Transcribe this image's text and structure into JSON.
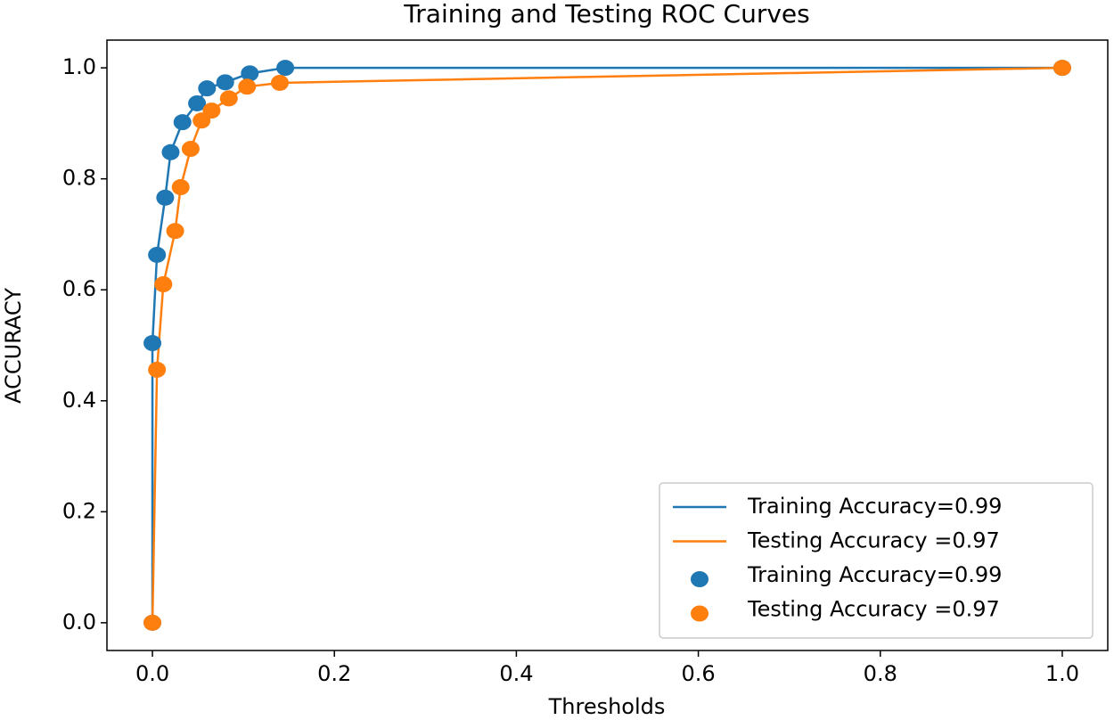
{
  "chart_data": {
    "type": "line",
    "title": "Training and Testing ROC Curves",
    "xlabel": "Thresholds",
    "ylabel": "ACCURACY",
    "xlim": [
      -0.05,
      1.05
    ],
    "ylim": [
      -0.05,
      1.05
    ],
    "xticks": [
      {
        "value": 0,
        "label": "0.0"
      },
      {
        "value": 0.2,
        "label": "0.2"
      },
      {
        "value": 0.4,
        "label": "0.4"
      },
      {
        "value": 0.6,
        "label": "0.6"
      },
      {
        "value": 0.8,
        "label": "0.8"
      },
      {
        "value": 1,
        "label": "1.0"
      }
    ],
    "yticks": [
      {
        "value": 0,
        "label": "0.0"
      },
      {
        "value": 0.2,
        "label": "0.2"
      },
      {
        "value": 0.4,
        "label": "0.4"
      },
      {
        "value": 0.6,
        "label": "0.6"
      },
      {
        "value": 0.8,
        "label": "0.8"
      },
      {
        "value": 1,
        "label": "1.0"
      }
    ],
    "legend": "lower right",
    "series": [
      {
        "name": "Training Accuracy=0.99",
        "kind": "line",
        "color": "#1f77b4",
        "x": [
          0,
          0,
          0.005,
          0.014,
          0.02,
          0.033,
          0.049,
          0.06,
          0.08,
          0.107,
          0.146,
          1
        ],
        "values": [
          0,
          0.504,
          0.663,
          0.766,
          0.848,
          0.902,
          0.936,
          0.963,
          0.974,
          0.99,
          1,
          1
        ]
      },
      {
        "name": "Testing Accuracy =0.97",
        "kind": "line",
        "color": "#ff7f0e",
        "x": [
          0,
          0.005,
          0.012,
          0.025,
          0.031,
          0.042,
          0.054,
          0.065,
          0.084,
          0.104,
          0.14,
          1
        ],
        "values": [
          0,
          0.456,
          0.61,
          0.706,
          0.785,
          0.854,
          0.905,
          0.923,
          0.945,
          0.966,
          0.973,
          1
        ]
      },
      {
        "name": "Training Accuracy=0.99",
        "kind": "scatter",
        "color": "#1f77b4",
        "x": [
          0,
          0,
          0.005,
          0.014,
          0.02,
          0.033,
          0.049,
          0.06,
          0.08,
          0.107,
          0.146,
          1
        ],
        "values": [
          0,
          0.504,
          0.663,
          0.766,
          0.848,
          0.902,
          0.936,
          0.963,
          0.974,
          0.99,
          1,
          1
        ]
      },
      {
        "name": "Testing Accuracy =0.97",
        "kind": "scatter",
        "color": "#ff7f0e",
        "x": [
          0,
          0.005,
          0.012,
          0.025,
          0.031,
          0.042,
          0.054,
          0.065,
          0.084,
          0.104,
          0.14,
          1
        ],
        "values": [
          0,
          0.456,
          0.61,
          0.706,
          0.785,
          0.854,
          0.905,
          0.923,
          0.945,
          0.966,
          0.973,
          1
        ]
      }
    ]
  }
}
